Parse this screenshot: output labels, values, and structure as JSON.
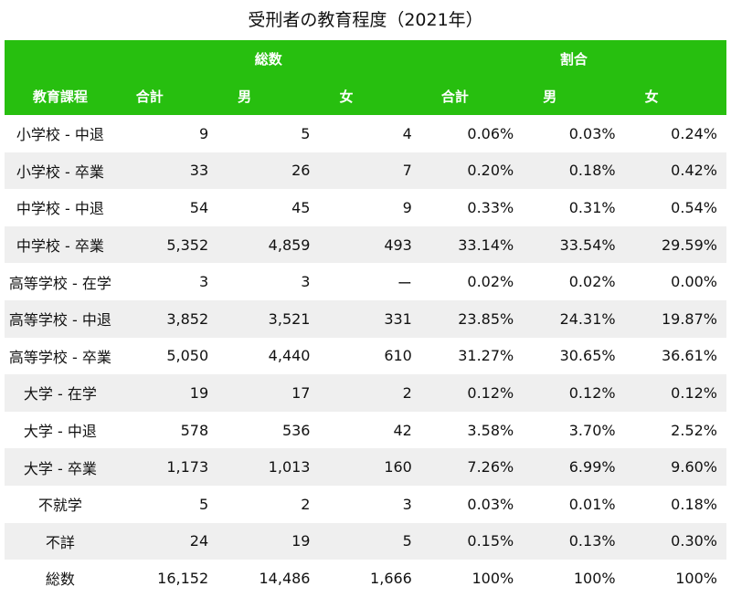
{
  "title": "受刑者の教育程度（2021年）",
  "header": {
    "group_total": "総数",
    "group_ratio": "割合",
    "col_category": "教育課程",
    "col_total": "合計",
    "col_male": "男",
    "col_female": "女",
    "col_total_pct": "合計",
    "col_male_pct": "男",
    "col_female_pct": "女"
  },
  "rows": [
    {
      "label": "小学校 - 中退",
      "total": "9",
      "male": "5",
      "female": "4",
      "total_pct": "0.06%",
      "male_pct": "0.03%",
      "female_pct": "0.24%"
    },
    {
      "label": "小学校 - 卒業",
      "total": "33",
      "male": "26",
      "female": "7",
      "total_pct": "0.20%",
      "male_pct": "0.18%",
      "female_pct": "0.42%"
    },
    {
      "label": "中学校 - 中退",
      "total": "54",
      "male": "45",
      "female": "9",
      "total_pct": "0.33%",
      "male_pct": "0.31%",
      "female_pct": "0.54%"
    },
    {
      "label": "中学校 - 卒業",
      "total": "5,352",
      "male": "4,859",
      "female": "493",
      "total_pct": "33.14%",
      "male_pct": "33.54%",
      "female_pct": "29.59%"
    },
    {
      "label": "高等学校 - 在学",
      "total": "3",
      "male": "3",
      "female": "ー",
      "total_pct": "0.02%",
      "male_pct": "0.02%",
      "female_pct": "0.00%"
    },
    {
      "label": "高等学校 - 中退",
      "total": "3,852",
      "male": "3,521",
      "female": "331",
      "total_pct": "23.85%",
      "male_pct": "24.31%",
      "female_pct": "19.87%"
    },
    {
      "label": "高等学校 - 卒業",
      "total": "5,050",
      "male": "4,440",
      "female": "610",
      "total_pct": "31.27%",
      "male_pct": "30.65%",
      "female_pct": "36.61%"
    },
    {
      "label": "大学 - 在学",
      "total": "19",
      "male": "17",
      "female": "2",
      "total_pct": "0.12%",
      "male_pct": "0.12%",
      "female_pct": "0.12%"
    },
    {
      "label": "大学 - 中退",
      "total": "578",
      "male": "536",
      "female": "42",
      "total_pct": "3.58%",
      "male_pct": "3.70%",
      "female_pct": "2.52%"
    },
    {
      "label": "大学 - 卒業",
      "total": "1,173",
      "male": "1,013",
      "female": "160",
      "total_pct": "7.26%",
      "male_pct": "6.99%",
      "female_pct": "9.60%"
    },
    {
      "label": "不就学",
      "total": "5",
      "male": "2",
      "female": "3",
      "total_pct": "0.03%",
      "male_pct": "0.01%",
      "female_pct": "0.18%"
    },
    {
      "label": "不詳",
      "total": "24",
      "male": "19",
      "female": "5",
      "total_pct": "0.15%",
      "male_pct": "0.13%",
      "female_pct": "0.30%"
    },
    {
      "label": "総数",
      "total": "16,152",
      "male": "14,486",
      "female": "1,666",
      "total_pct": "100%",
      "male_pct": "100%",
      "female_pct": "100%"
    }
  ],
  "colors": {
    "header_bg": "#27bf0f",
    "stripe_bg": "#efefef"
  }
}
